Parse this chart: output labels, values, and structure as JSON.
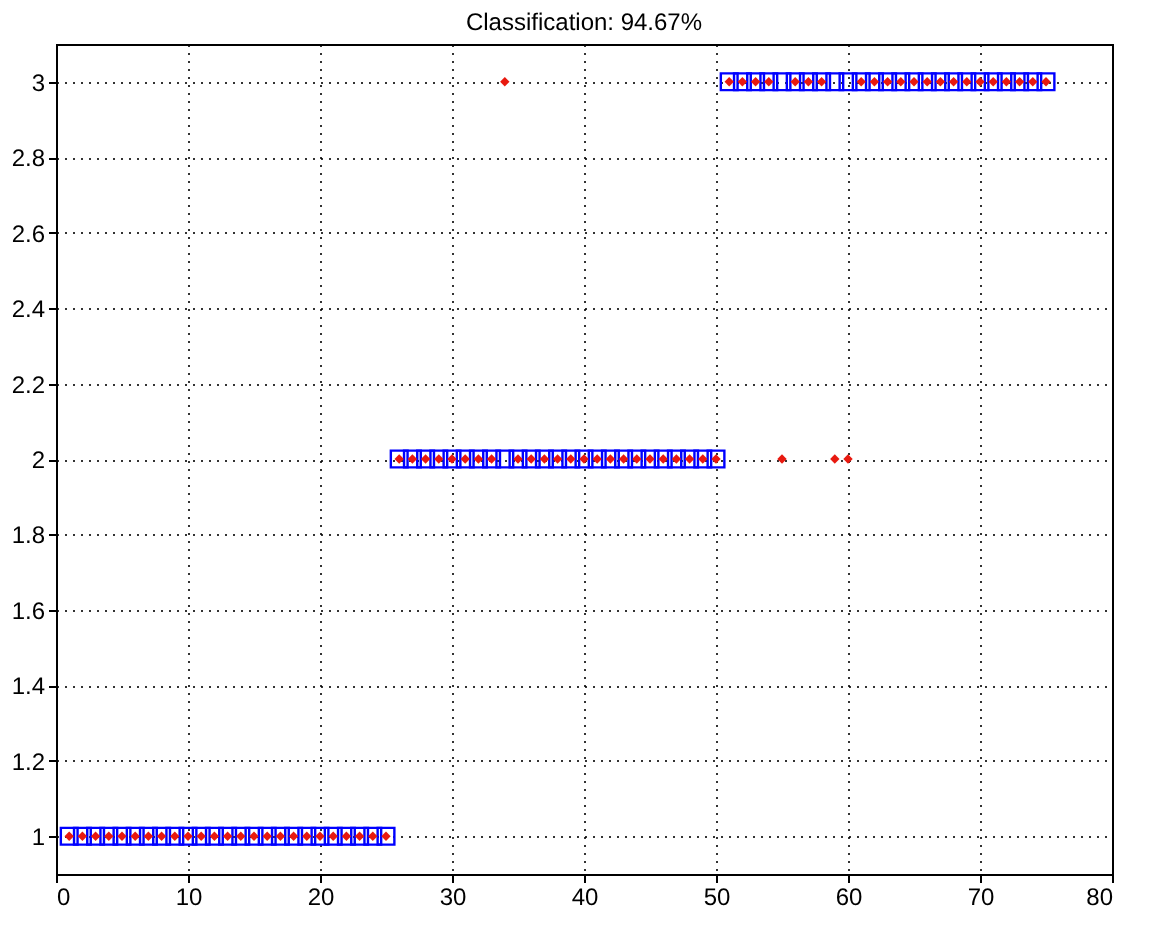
{
  "chart_data": {
    "type": "scatter",
    "title": "Classification: 94.67%",
    "x": [
      1,
      2,
      3,
      4,
      5,
      6,
      7,
      8,
      9,
      10,
      11,
      12,
      13,
      14,
      15,
      16,
      17,
      18,
      19,
      20,
      21,
      22,
      23,
      24,
      25,
      26,
      27,
      28,
      29,
      30,
      31,
      32,
      33,
      34,
      35,
      36,
      37,
      38,
      39,
      40,
      41,
      42,
      43,
      44,
      45,
      46,
      47,
      48,
      49,
      50,
      51,
      52,
      53,
      54,
      55,
      56,
      57,
      58,
      59,
      60,
      61,
      62,
      63,
      64,
      65,
      66,
      67,
      68,
      69,
      70,
      71,
      72,
      73,
      74,
      75
    ],
    "series": [
      {
        "color": "#0000ff",
        "marker": "square",
        "values": [
          1,
          1,
          1,
          1,
          1,
          1,
          1,
          1,
          1,
          1,
          1,
          1,
          1,
          1,
          1,
          1,
          1,
          1,
          1,
          1,
          1,
          1,
          1,
          1,
          1,
          2,
          2,
          2,
          2,
          2,
          2,
          2,
          2,
          2,
          2,
          2,
          2,
          2,
          2,
          2,
          2,
          2,
          2,
          2,
          2,
          2,
          2,
          2,
          2,
          2,
          3,
          3,
          3,
          3,
          3,
          3,
          3,
          3,
          3,
          3,
          3,
          3,
          3,
          3,
          3,
          3,
          3,
          3,
          3,
          3,
          3,
          3,
          3,
          3,
          3
        ]
      },
      {
        "color": "#e8190f",
        "marker": "diamond",
        "values": [
          1,
          1,
          1,
          1,
          1,
          1,
          1,
          1,
          1,
          1,
          1,
          1,
          1,
          1,
          1,
          1,
          1,
          1,
          1,
          1,
          1,
          1,
          1,
          1,
          1,
          2,
          2,
          2,
          2,
          2,
          2,
          2,
          2,
          3,
          2,
          2,
          2,
          2,
          2,
          2,
          2,
          2,
          2,
          2,
          2,
          2,
          2,
          2,
          2,
          2,
          3,
          3,
          3,
          3,
          2,
          3,
          3,
          3,
          2,
          2,
          3,
          3,
          3,
          3,
          3,
          3,
          3,
          3,
          3,
          3,
          3,
          3,
          3,
          3,
          3
        ]
      }
    ],
    "xlim": [
      0,
      80
    ],
    "xticks": [
      0,
      10,
      20,
      30,
      40,
      50,
      60,
      70,
      80
    ],
    "ylim": [
      0.9,
      3.1
    ],
    "yticks": [
      1,
      1.2,
      1.4,
      1.6,
      1.8,
      2,
      2.2,
      2.4,
      2.6,
      2.8,
      3
    ],
    "grid": true
  }
}
